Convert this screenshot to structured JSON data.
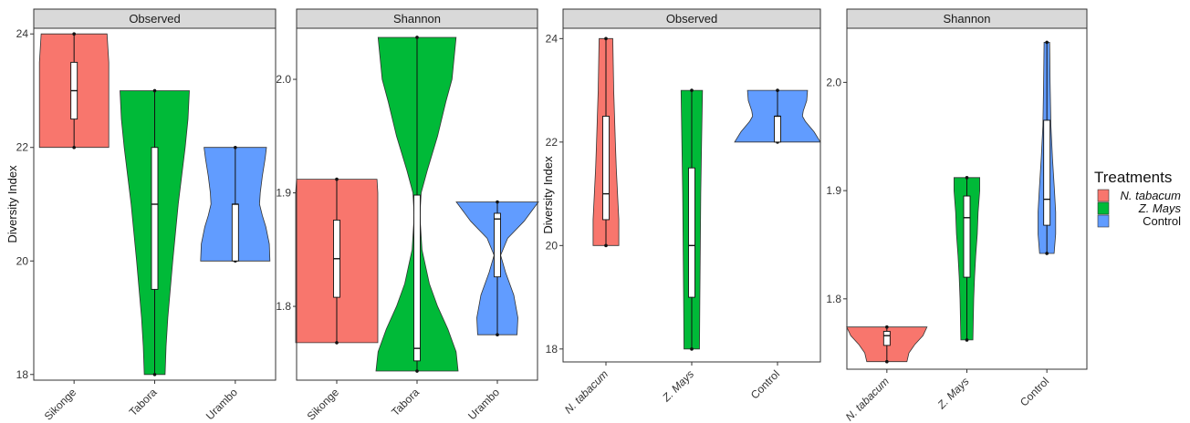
{
  "legend": {
    "title": "Treatments",
    "items": [
      {
        "label": "N. tabacum",
        "italic": true,
        "color": "#F8766D"
      },
      {
        "label": "Z. Mays",
        "italic": true,
        "color": "#00BA38"
      },
      {
        "label": "Control",
        "italic": false,
        "color": "#619CFF"
      }
    ]
  },
  "chart_data": [
    {
      "type": "violin",
      "strip": "Observed",
      "ylabel": "Diversity Index",
      "ylim": [
        17.9,
        24.1
      ],
      "yticks": [
        18,
        20,
        22,
        24
      ],
      "categories": [
        "Sikonge",
        "Tabora",
        "Urambo"
      ],
      "series": [
        {
          "category": "Sikonge",
          "color": "#F8766D",
          "min": 22,
          "q1": 22.5,
          "median": 23,
          "q3": 23.5,
          "max": 24,
          "density": [
            [
              22,
              1.0
            ],
            [
              22.5,
              1.0
            ],
            [
              23.0,
              1.0
            ],
            [
              23.5,
              1.0
            ],
            [
              24,
              0.95
            ]
          ]
        },
        {
          "category": "Tabora",
          "color": "#00BA38",
          "min": 18,
          "q1": 19.5,
          "median": 21,
          "q3": 22,
          "max": 23,
          "density": [
            [
              18,
              0.3
            ],
            [
              18.5,
              0.33
            ],
            [
              19,
              0.38
            ],
            [
              19.5,
              0.45
            ],
            [
              20,
              0.52
            ],
            [
              20.5,
              0.6
            ],
            [
              21,
              0.68
            ],
            [
              21.5,
              0.78
            ],
            [
              22,
              0.88
            ],
            [
              22.5,
              0.96
            ],
            [
              23,
              1.0
            ]
          ]
        },
        {
          "category": "Urambo",
          "color": "#619CFF",
          "min": 20,
          "q1": 20,
          "median": 21,
          "q3": 21,
          "max": 22,
          "density": [
            [
              20,
              1.0
            ],
            [
              20.3,
              0.98
            ],
            [
              20.6,
              0.88
            ],
            [
              20.8,
              0.78
            ],
            [
              21.0,
              0.7
            ],
            [
              21.2,
              0.72
            ],
            [
              21.5,
              0.78
            ],
            [
              21.8,
              0.86
            ],
            [
              22,
              0.9
            ]
          ]
        }
      ]
    },
    {
      "type": "violin",
      "strip": "Shannon",
      "ylabel": "",
      "ylim": [
        1.735,
        2.045
      ],
      "yticks": [
        1.8,
        1.9,
        2.0
      ],
      "categories": [
        "Sikonge",
        "Tabora",
        "Urambo"
      ],
      "series": [
        {
          "category": "Sikonge",
          "color": "#F8766D",
          "min": 1.768,
          "q1": 1.808,
          "median": 1.842,
          "q3": 1.876,
          "max": 1.912,
          "density": [
            [
              1.768,
              1.0
            ],
            [
              1.8,
              1.0
            ],
            [
              1.85,
              1.0
            ],
            [
              1.9,
              1.0
            ],
            [
              1.912,
              0.98
            ]
          ]
        },
        {
          "category": "Tabora",
          "color": "#00BA38",
          "min": 1.743,
          "q1": 1.752,
          "median": 1.763,
          "q3": 1.898,
          "max": 2.037,
          "density": [
            [
              1.743,
              1.0
            ],
            [
              1.76,
              0.95
            ],
            [
              1.78,
              0.75
            ],
            [
              1.8,
              0.5
            ],
            [
              1.82,
              0.3
            ],
            [
              1.85,
              0.12
            ],
            [
              1.88,
              0.07
            ],
            [
              1.9,
              0.1
            ],
            [
              1.92,
              0.25
            ],
            [
              1.95,
              0.5
            ],
            [
              1.98,
              0.7
            ],
            [
              2.0,
              0.85
            ],
            [
              2.037,
              0.95
            ]
          ]
        },
        {
          "category": "Urambo",
          "color": "#619CFF",
          "min": 1.775,
          "q1": 1.826,
          "median": 1.877,
          "q3": 1.882,
          "max": 1.892,
          "density": [
            [
              1.775,
              0.48
            ],
            [
              1.79,
              0.5
            ],
            [
              1.81,
              0.4
            ],
            [
              1.83,
              0.2
            ],
            [
              1.845,
              0.08
            ],
            [
              1.86,
              0.25
            ],
            [
              1.875,
              0.65
            ],
            [
              1.892,
              1.0
            ]
          ]
        }
      ]
    },
    {
      "type": "violin",
      "strip": "Observed",
      "ylabel": "Diversity Index",
      "ylim": [
        17.75,
        24.2
      ],
      "yticks": [
        18,
        20,
        22,
        24
      ],
      "categories": [
        "N. tabacum",
        "Z. Mays",
        "Control"
      ],
      "series": [
        {
          "category": "N. tabacum",
          "color": "#F8766D",
          "min": 20,
          "q1": 20.5,
          "median": 21,
          "q3": 22.5,
          "max": 24,
          "density": [
            [
              20,
              0.3
            ],
            [
              20.5,
              0.3
            ],
            [
              21,
              0.27
            ],
            [
              21.5,
              0.24
            ],
            [
              22,
              0.22
            ],
            [
              22.5,
              0.2
            ],
            [
              23,
              0.18
            ],
            [
              23.5,
              0.17
            ],
            [
              24,
              0.16
            ]
          ]
        },
        {
          "category": "Z. Mays",
          "color": "#00BA38",
          "min": 18,
          "q1": 19,
          "median": 20,
          "q3": 21.5,
          "max": 23,
          "density": [
            [
              18,
              0.18
            ],
            [
              19,
              0.19
            ],
            [
              20,
              0.2
            ],
            [
              21,
              0.21
            ],
            [
              22,
              0.23
            ],
            [
              23,
              0.25
            ]
          ]
        },
        {
          "category": "Control",
          "color": "#619CFF",
          "min": 22,
          "q1": 22,
          "median": 22.5,
          "q3": 22.5,
          "max": 23,
          "density": [
            [
              22,
              1.0
            ],
            [
              22.2,
              0.85
            ],
            [
              22.4,
              0.65
            ],
            [
              22.5,
              0.58
            ],
            [
              22.6,
              0.6
            ],
            [
              22.8,
              0.68
            ],
            [
              23,
              0.7
            ]
          ]
        }
      ]
    },
    {
      "type": "violin",
      "strip": "Shannon",
      "ylabel": "",
      "ylim": [
        1.735,
        2.05
      ],
      "yticks": [
        1.8,
        1.9,
        2.0
      ],
      "categories": [
        "N. tabacum",
        "Z. Mays",
        "Control"
      ],
      "series": [
        {
          "category": "N. tabacum",
          "color": "#F8766D",
          "min": 1.742,
          "q1": 1.757,
          "median": 1.766,
          "q3": 1.77,
          "max": 1.774,
          "density": [
            [
              1.742,
              0.5
            ],
            [
              1.75,
              0.55
            ],
            [
              1.758,
              0.7
            ],
            [
              1.766,
              0.9
            ],
            [
              1.774,
              1.0
            ]
          ]
        },
        {
          "category": "Z. Mays",
          "color": "#00BA38",
          "min": 1.762,
          "q1": 1.82,
          "median": 1.875,
          "q3": 1.895,
          "max": 1.912,
          "density": [
            [
              1.762,
              0.15
            ],
            [
              1.78,
              0.16
            ],
            [
              1.8,
              0.17
            ],
            [
              1.82,
              0.19
            ],
            [
              1.84,
              0.22
            ],
            [
              1.86,
              0.26
            ],
            [
              1.88,
              0.28
            ],
            [
              1.9,
              0.32
            ],
            [
              1.912,
              0.32
            ]
          ]
        },
        {
          "category": "Control",
          "color": "#619CFF",
          "min": 1.842,
          "q1": 1.868,
          "median": 1.892,
          "q3": 1.965,
          "max": 2.037,
          "density": [
            [
              1.842,
              0.18
            ],
            [
              1.86,
              0.22
            ],
            [
              1.88,
              0.22
            ],
            [
              1.9,
              0.19
            ],
            [
              1.93,
              0.14
            ],
            [
              1.96,
              0.1
            ],
            [
              2.0,
              0.08
            ],
            [
              2.037,
              0.07
            ]
          ]
        }
      ]
    }
  ]
}
